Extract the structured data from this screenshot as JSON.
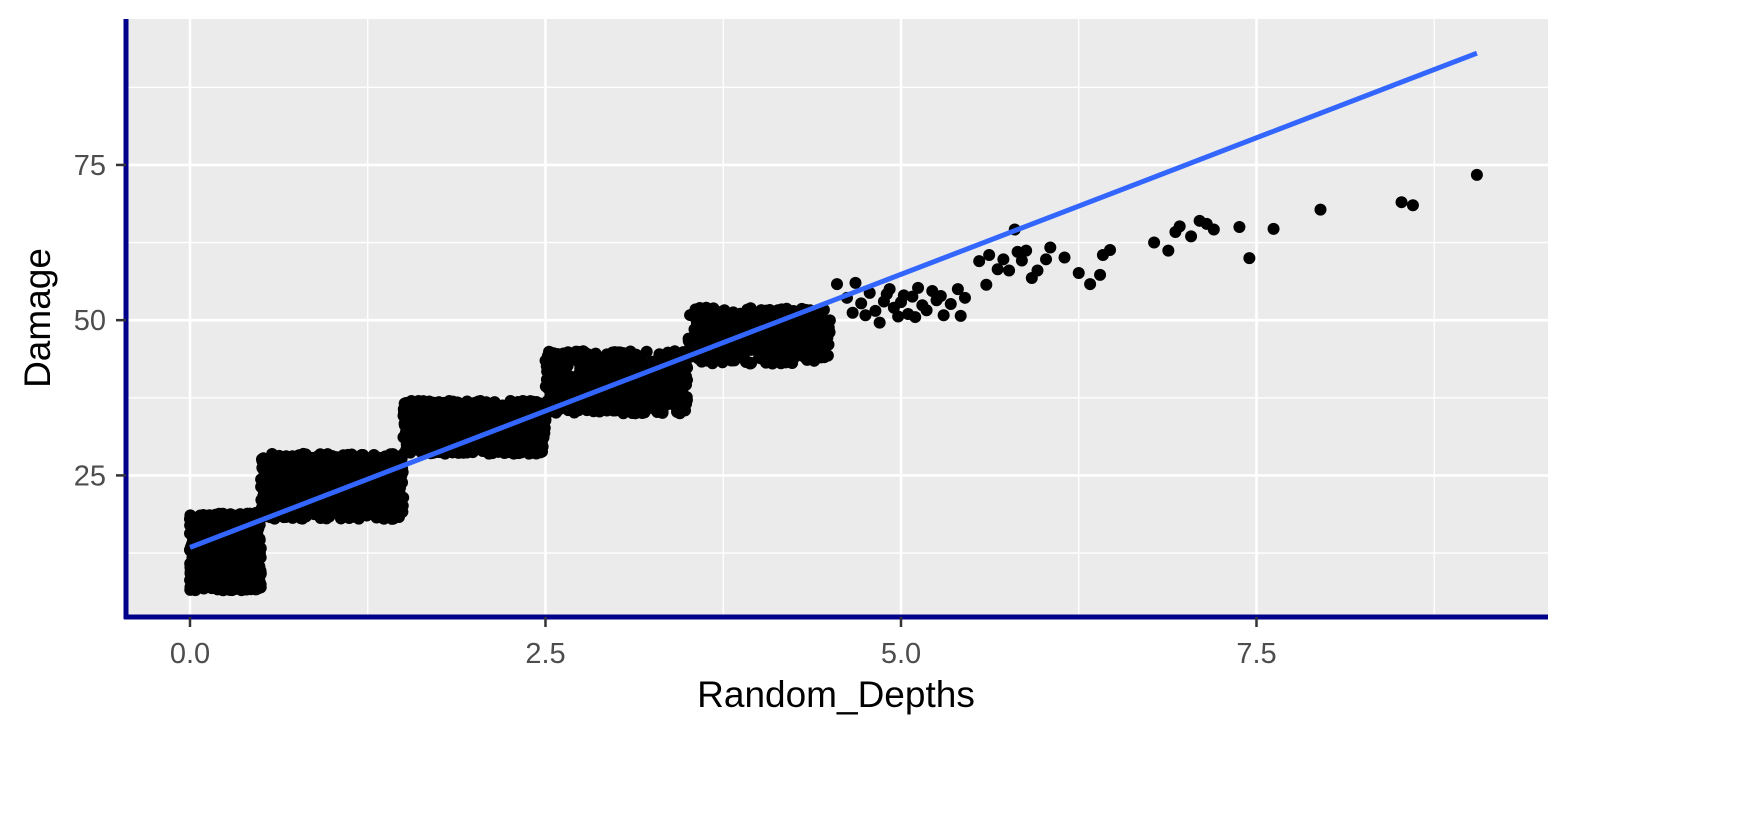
{
  "chart_data": {
    "type": "scatter",
    "title": "",
    "xlabel": "Random_Depths",
    "ylabel": "Damage",
    "xlim": [
      -0.45,
      9.55
    ],
    "ylim": [
      2.2,
      98.5
    ],
    "x_ticks": [
      0.0,
      2.5,
      5.0,
      7.5
    ],
    "x_tick_labels": [
      "0.0",
      "2.5",
      "5.0",
      "7.5"
    ],
    "y_ticks": [
      25,
      50,
      75
    ],
    "y_tick_labels": [
      "25",
      "50",
      "75"
    ],
    "grid": true,
    "legend": "none",
    "colors": {
      "panel_background": "#ebebeb",
      "grid": "#ffffff",
      "points": "#000000",
      "fit_line": "#3366ff",
      "axis_line": "#00008b"
    },
    "series": [
      {
        "kind": "points",
        "clusters": [
          {
            "x": [
              0.0,
              0.5
            ],
            "y": [
              6.5,
              19.0
            ],
            "n": 700
          },
          {
            "x": [
              0.5,
              1.5
            ],
            "y": [
              18.0,
              28.5
            ],
            "n": 700
          },
          {
            "x": [
              1.5,
              2.5
            ],
            "y": [
              28.5,
              37.0
            ],
            "n": 650
          },
          {
            "x": [
              2.5,
              3.5
            ],
            "y": [
              35.0,
              45.0
            ],
            "n": 550
          },
          {
            "x": [
              3.5,
              4.5
            ],
            "y": [
              43.0,
              52.0
            ],
            "n": 420
          }
        ],
        "points": [
          [
            4.55,
            55.8
          ],
          [
            4.62,
            53.6
          ],
          [
            4.68,
            56.0
          ],
          [
            4.72,
            52.7
          ],
          [
            4.75,
            50.8
          ],
          [
            4.78,
            54.4
          ],
          [
            4.82,
            51.5
          ],
          [
            4.85,
            49.6
          ],
          [
            4.88,
            53.0
          ],
          [
            4.92,
            55.0
          ],
          [
            4.95,
            52.0
          ],
          [
            4.98,
            50.6
          ],
          [
            5.02,
            54.0
          ],
          [
            5.05,
            51.0
          ],
          [
            5.08,
            53.8
          ],
          [
            5.12,
            55.2
          ],
          [
            5.15,
            52.4
          ],
          [
            5.18,
            51.6
          ],
          [
            5.22,
            54.7
          ],
          [
            5.25,
            53.2
          ],
          [
            5.3,
            50.8
          ],
          [
            5.35,
            52.6
          ],
          [
            5.4,
            55.0
          ],
          [
            5.42,
            50.7
          ],
          [
            5.45,
            53.6
          ],
          [
            4.66,
            51.2
          ],
          [
            4.9,
            54.2
          ],
          [
            5.0,
            52.9
          ],
          [
            5.1,
            50.5
          ],
          [
            5.28,
            53.9
          ],
          [
            5.55,
            59.5
          ],
          [
            5.6,
            55.7
          ],
          [
            5.62,
            60.5
          ],
          [
            5.68,
            58.2
          ],
          [
            5.72,
            59.8
          ],
          [
            5.76,
            58.0
          ],
          [
            5.8,
            64.6
          ],
          [
            5.82,
            61.0
          ],
          [
            5.85,
            59.6
          ],
          [
            5.88,
            61.2
          ],
          [
            5.92,
            56.8
          ],
          [
            5.96,
            58.0
          ],
          [
            6.02,
            59.8
          ],
          [
            6.05,
            61.7
          ],
          [
            6.15,
            60.1
          ],
          [
            6.25,
            57.6
          ],
          [
            6.33,
            55.8
          ],
          [
            6.4,
            57.3
          ],
          [
            6.42,
            60.5
          ],
          [
            6.47,
            61.3
          ],
          [
            6.78,
            62.5
          ],
          [
            6.88,
            61.2
          ],
          [
            6.93,
            64.2
          ],
          [
            6.96,
            65.1
          ],
          [
            7.04,
            63.5
          ],
          [
            7.1,
            66.0
          ],
          [
            7.15,
            65.5
          ],
          [
            7.2,
            64.6
          ],
          [
            7.38,
            65.0
          ],
          [
            7.45,
            60.0
          ],
          [
            7.62,
            64.7
          ],
          [
            7.95,
            67.8
          ],
          [
            8.52,
            69.0
          ],
          [
            8.6,
            68.5
          ],
          [
            9.05,
            73.4
          ]
        ]
      },
      {
        "kind": "fit_line",
        "x": [
          0.0,
          9.05
        ],
        "y": [
          13.4,
          93.0
        ]
      }
    ]
  }
}
